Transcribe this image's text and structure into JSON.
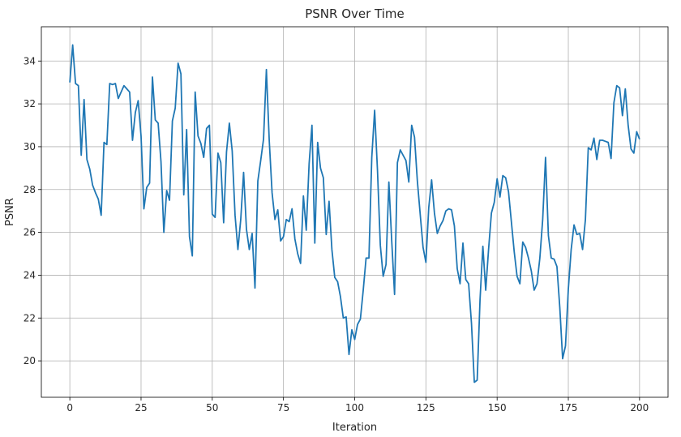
{
  "chart_data": {
    "type": "line",
    "title": "PSNR Over Time",
    "xlabel": "Iteration",
    "ylabel": "PSNR",
    "xlim": [
      -10,
      210
    ],
    "ylim": [
      18.3,
      35.6
    ],
    "xticks": [
      0,
      25,
      50,
      75,
      100,
      125,
      150,
      175,
      200
    ],
    "yticks": [
      20,
      22,
      24,
      26,
      28,
      30,
      32,
      34
    ],
    "grid": true,
    "line_color": "#1f77b4",
    "series": [
      {
        "values": [
          33.0,
          34.75,
          32.95,
          32.85,
          29.6,
          32.2,
          29.4,
          28.95,
          28.2,
          27.85,
          27.55,
          26.8,
          30.2,
          30.1,
          32.95,
          32.9,
          32.95,
          32.25,
          32.55,
          32.85,
          32.7,
          32.55,
          30.3,
          31.6,
          32.15,
          30.5,
          27.1,
          28.1,
          28.3,
          33.25,
          31.25,
          31.1,
          29.3,
          26.0,
          27.95,
          27.5,
          31.2,
          31.8,
          33.9,
          33.4,
          27.75,
          30.8,
          25.8,
          24.9,
          32.55,
          30.5,
          30.15,
          29.5,
          30.85,
          31.0,
          26.85,
          26.7,
          29.7,
          29.25,
          26.45,
          29.75,
          31.1,
          29.8,
          26.8,
          25.2,
          26.6,
          28.8,
          26.15,
          25.2,
          25.95,
          23.4,
          28.4,
          29.35,
          30.35,
          33.6,
          30.3,
          27.85,
          26.6,
          27.05,
          25.6,
          25.8,
          26.6,
          26.5,
          27.1,
          25.7,
          25.0,
          24.55,
          27.7,
          26.1,
          29.2,
          31.0,
          25.5,
          30.2,
          29.0,
          28.55,
          25.9,
          27.45,
          25.2,
          23.9,
          23.7,
          23.0,
          22.0,
          22.05,
          20.3,
          21.45,
          21.0,
          21.7,
          21.95,
          23.3,
          24.8,
          24.8,
          29.5,
          31.7,
          28.9,
          25.4,
          23.95,
          24.5,
          28.35,
          25.6,
          23.1,
          29.25,
          29.85,
          29.6,
          29.35,
          28.35,
          31.0,
          30.45,
          28.4,
          26.85,
          25.3,
          24.6,
          27.15,
          28.45,
          26.9,
          25.95,
          26.3,
          26.55,
          27.0,
          27.1,
          27.05,
          26.3,
          24.3,
          23.6,
          25.5,
          23.8,
          23.6,
          21.75,
          19.0,
          19.1,
          22.85,
          25.35,
          23.3,
          25.2,
          26.9,
          27.4,
          28.5,
          27.65,
          28.65,
          28.55,
          27.9,
          26.5,
          25.1,
          23.95,
          23.6,
          25.55,
          25.3,
          24.8,
          24.2,
          23.3,
          23.6,
          24.8,
          26.6,
          29.5,
          25.85,
          24.8,
          24.75,
          24.4,
          22.5,
          20.1,
          20.7,
          23.35,
          25.2,
          26.35,
          25.9,
          25.95,
          25.2,
          26.6,
          29.95,
          29.85,
          30.4,
          29.4,
          30.3,
          30.3,
          30.25,
          30.2,
          29.45,
          32.05,
          32.85,
          32.75,
          31.45,
          32.7,
          31.0,
          29.9,
          29.7,
          30.7,
          30.35
        ]
      }
    ]
  }
}
